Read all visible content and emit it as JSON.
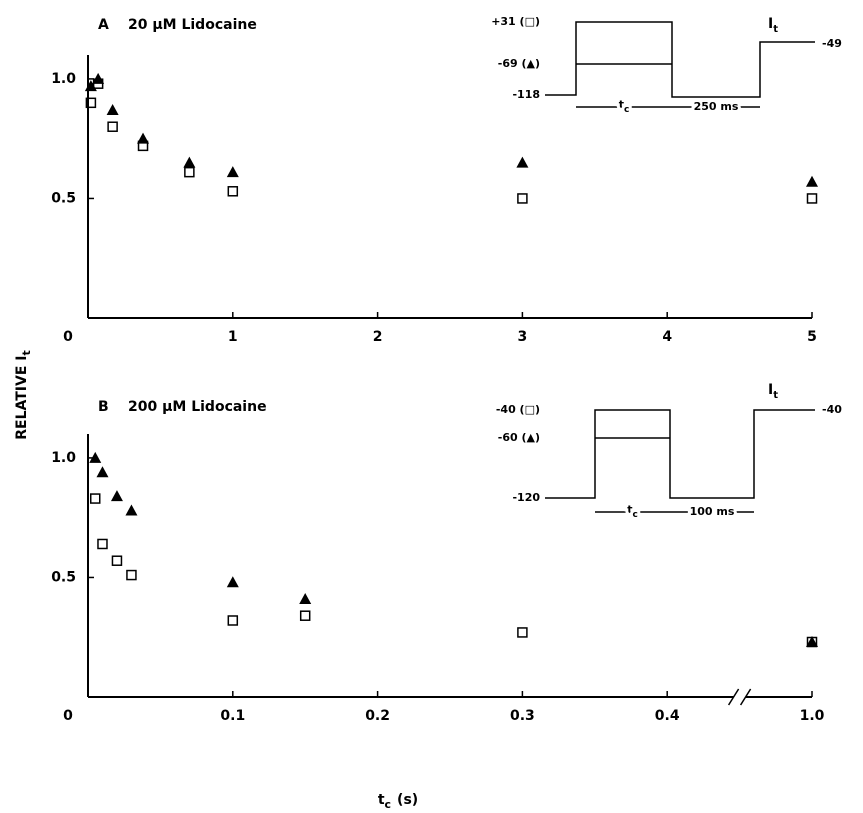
{
  "y_label": "RELATIVE I",
  "y_label_sub": "t",
  "x_label": "t",
  "x_label_sub": "c",
  "x_label_unit": "(s)",
  "chart_data": [
    {
      "type": "scatter",
      "letter": "A",
      "title": "20 μM Lidocaine",
      "xlim": [
        0,
        5
      ],
      "xticks": [
        0,
        1,
        2,
        3,
        4,
        5
      ],
      "ylim": [
        0,
        1.1
      ],
      "yticks": [
        0.5,
        {
          "value": 1,
          "label": "1.0"
        }
      ],
      "series": [
        {
          "marker": "triangle",
          "color": "#000",
          "x": [
            0.02,
            0.07,
            0.17,
            0.38,
            0.7,
            1,
            3,
            5
          ],
          "values": [
            0.97,
            1.0,
            0.87,
            0.75,
            0.65,
            0.61,
            0.65,
            0.57
          ]
        },
        {
          "marker": "square",
          "color": "#000",
          "x": [
            0.02,
            0.07,
            0.17,
            0.38,
            0.7,
            1,
            3,
            5
          ],
          "values": [
            0.9,
            0.98,
            0.8,
            0.72,
            0.61,
            0.53,
            0.5,
            0.5
          ]
        }
      ],
      "inset": {
        "high": "+31 (□)",
        "mid": "-69 (▲)",
        "base": "-118",
        "test": "-49",
        "current": "I",
        "current_sub": "t",
        "tc": "t",
        "tc_sub": "c",
        "gap": "250 ms"
      }
    },
    {
      "type": "scatter",
      "letter": "B",
      "title": "200 μM Lidocaine",
      "xlim": [
        0,
        1
      ],
      "x_break": 0.4,
      "xticks": [
        0,
        0.1,
        0.2,
        0.3,
        0.4,
        {
          "value": 1,
          "label": "1.0"
        }
      ],
      "ylim": [
        0,
        1.1
      ],
      "yticks": [
        0.5,
        {
          "value": 1,
          "label": "1.0"
        }
      ],
      "series": [
        {
          "marker": "triangle",
          "color": "#000",
          "x": [
            0.005,
            0.01,
            0.02,
            0.03,
            0.1,
            0.15,
            1
          ],
          "values": [
            1.0,
            0.94,
            0.84,
            0.78,
            0.48,
            0.41,
            0.23
          ]
        },
        {
          "marker": "square",
          "color": "#000",
          "x": [
            0.005,
            0.01,
            0.02,
            0.03,
            0.1,
            0.15,
            0.3,
            1
          ],
          "values": [
            0.83,
            0.64,
            0.57,
            0.51,
            0.32,
            0.34,
            0.27,
            0.23
          ]
        }
      ],
      "inset": {
        "high": "-40 (□)",
        "mid": "-60 (▲)",
        "base": "-120",
        "test": "-40",
        "current": "I",
        "current_sub": "t",
        "tc": "t",
        "tc_sub": "c",
        "gap": "100 ms"
      }
    }
  ]
}
